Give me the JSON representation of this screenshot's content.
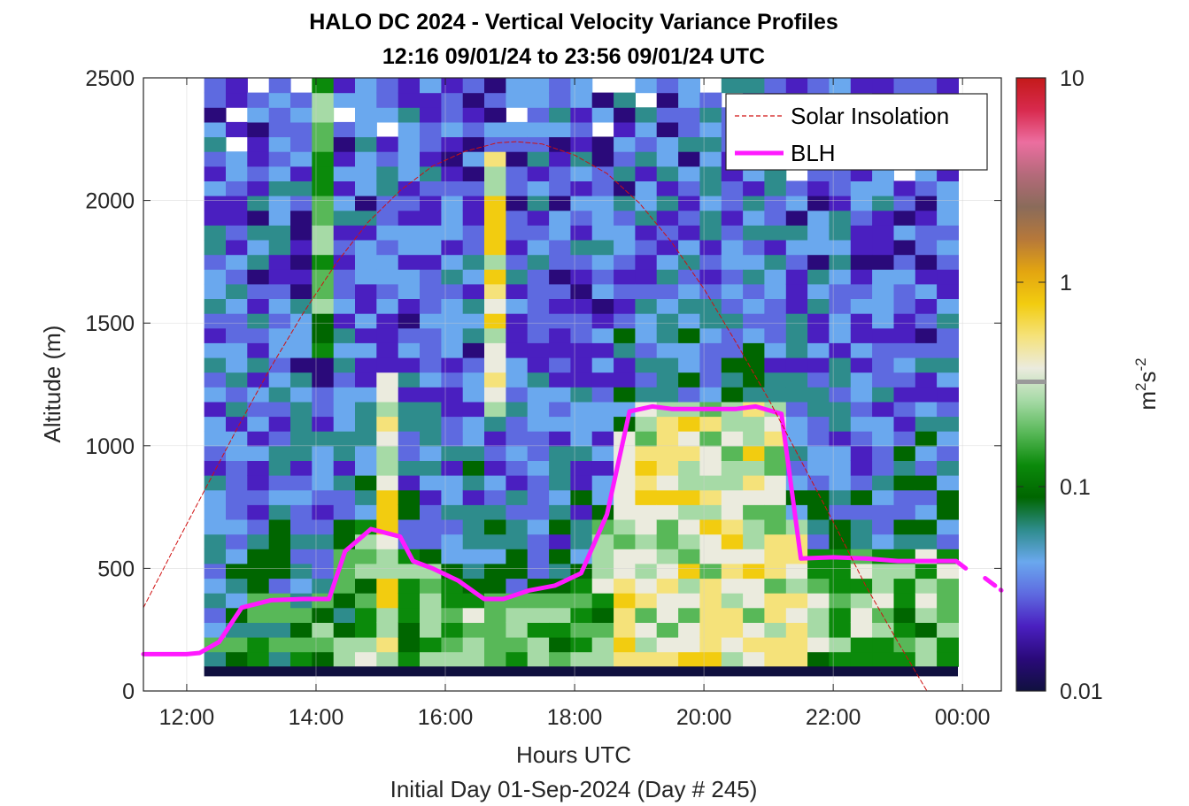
{
  "chart_data": {
    "type": "heatmap",
    "title": "HALO DC 2024 - Vertical Velocity Variance Profiles",
    "subtitle": "12:16 09/01/24 to 23:56 09/01/24  UTC",
    "xlabel": "Hours UTC",
    "xlabel2": "Initial Day 01-Sep-2024 (Day # 245)",
    "ylabel": "Altitude (m)",
    "x_tick_labels": [
      "12:00",
      "14:00",
      "16:00",
      "18:00",
      "20:00",
      "22:00",
      "00:00"
    ],
    "x_tick_values": [
      12,
      14,
      16,
      18,
      20,
      22,
      24
    ],
    "y_tick_labels": [
      "0",
      "500",
      "1000",
      "1500",
      "2000",
      "2500"
    ],
    "y_tick_values": [
      0,
      500,
      1000,
      1500,
      2000,
      2500
    ],
    "xlim": [
      11.33,
      24.6
    ],
    "ylim": [
      0,
      2500
    ],
    "grid": true,
    "colorbar": {
      "label_base": "m",
      "label_sup1": "2",
      "label_mid": "s",
      "label_sup2": "-2",
      "scale": "log",
      "range": [
        0.01,
        10
      ],
      "tick_labels": [
        "0.01",
        "0.1",
        "1",
        "10"
      ],
      "tick_values": [
        0.01,
        0.1,
        1,
        10
      ],
      "colors": [
        "#10103f",
        "#2a0a7a",
        "#4a1fc0",
        "#5e6ae0",
        "#6aa8ee",
        "#2e8c8c",
        "#006600",
        "#0b8a0b",
        "#58b858",
        "#a6daa6",
        "#ebebde",
        "#f5e27a",
        "#f2cc10",
        "#e3a510",
        "#b6783a",
        "#8a6b5a",
        "#b46a7a",
        "#ec6ea0",
        "#d82a4e",
        "#c41a1a"
      ]
    },
    "heatmap_grid": {
      "time_start_h": 12.27,
      "time_end_h": 23.93,
      "time_step_h": 0.3333,
      "altitude_start_m": 100,
      "altitude_end_m": 2500,
      "altitude_step_m": 60,
      "regime_note": "variance highest (0.1-1 m2 s-2) inside BLH after 18:30; narrow high-variance columns near 15:00 and 16:30"
    },
    "series": [
      {
        "name": "BLH",
        "color": "#ff1aff",
        "type": "line",
        "x": [
          11.33,
          12.0,
          12.2,
          12.5,
          12.85,
          13.3,
          13.8,
          14.2,
          14.45,
          14.85,
          15.3,
          15.5,
          15.8,
          16.2,
          16.6,
          16.9,
          17.3,
          17.7,
          18.1,
          18.5,
          18.85,
          19.2,
          19.5,
          20.0,
          20.5,
          20.8,
          21.2,
          21.5,
          22.0,
          22.5,
          23.0,
          23.5,
          23.9,
          24.05
        ],
        "y": [
          150,
          150,
          155,
          200,
          340,
          370,
          375,
          375,
          570,
          660,
          630,
          530,
          500,
          450,
          375,
          375,
          410,
          430,
          480,
          720,
          1140,
          1160,
          1150,
          1150,
          1150,
          1160,
          1130,
          540,
          545,
          540,
          530,
          530,
          530,
          500
        ]
      },
      {
        "name": "BLH-segment",
        "color": "#ff1aff",
        "type": "dashed-line",
        "x": [
          24.35,
          24.6
        ],
        "y": [
          460,
          410
        ]
      },
      {
        "name": "Solar Insolation",
        "color": "#d01010",
        "type": "dashed-line",
        "x": [
          11.33,
          11.8,
          12.3,
          12.8,
          13.3,
          13.8,
          14.3,
          14.8,
          15.3,
          15.8,
          16.3,
          16.8,
          17.1,
          17.5,
          18.0,
          18.5,
          19.0,
          19.5,
          20.0,
          20.5,
          21.0,
          21.5,
          22.0,
          22.5,
          23.0,
          23.45,
          23.8,
          24.6
        ],
        "y": [
          340,
          580,
          830,
          1080,
          1320,
          1540,
          1740,
          1910,
          2040,
          2140,
          2200,
          2235,
          2240,
          2230,
          2185,
          2110,
          1990,
          1830,
          1640,
          1420,
          1190,
          940,
          690,
          430,
          200,
          0,
          0,
          0
        ]
      }
    ],
    "legend": {
      "placement": "top-right",
      "entries": [
        "Solar Insolation",
        "BLH"
      ]
    }
  }
}
